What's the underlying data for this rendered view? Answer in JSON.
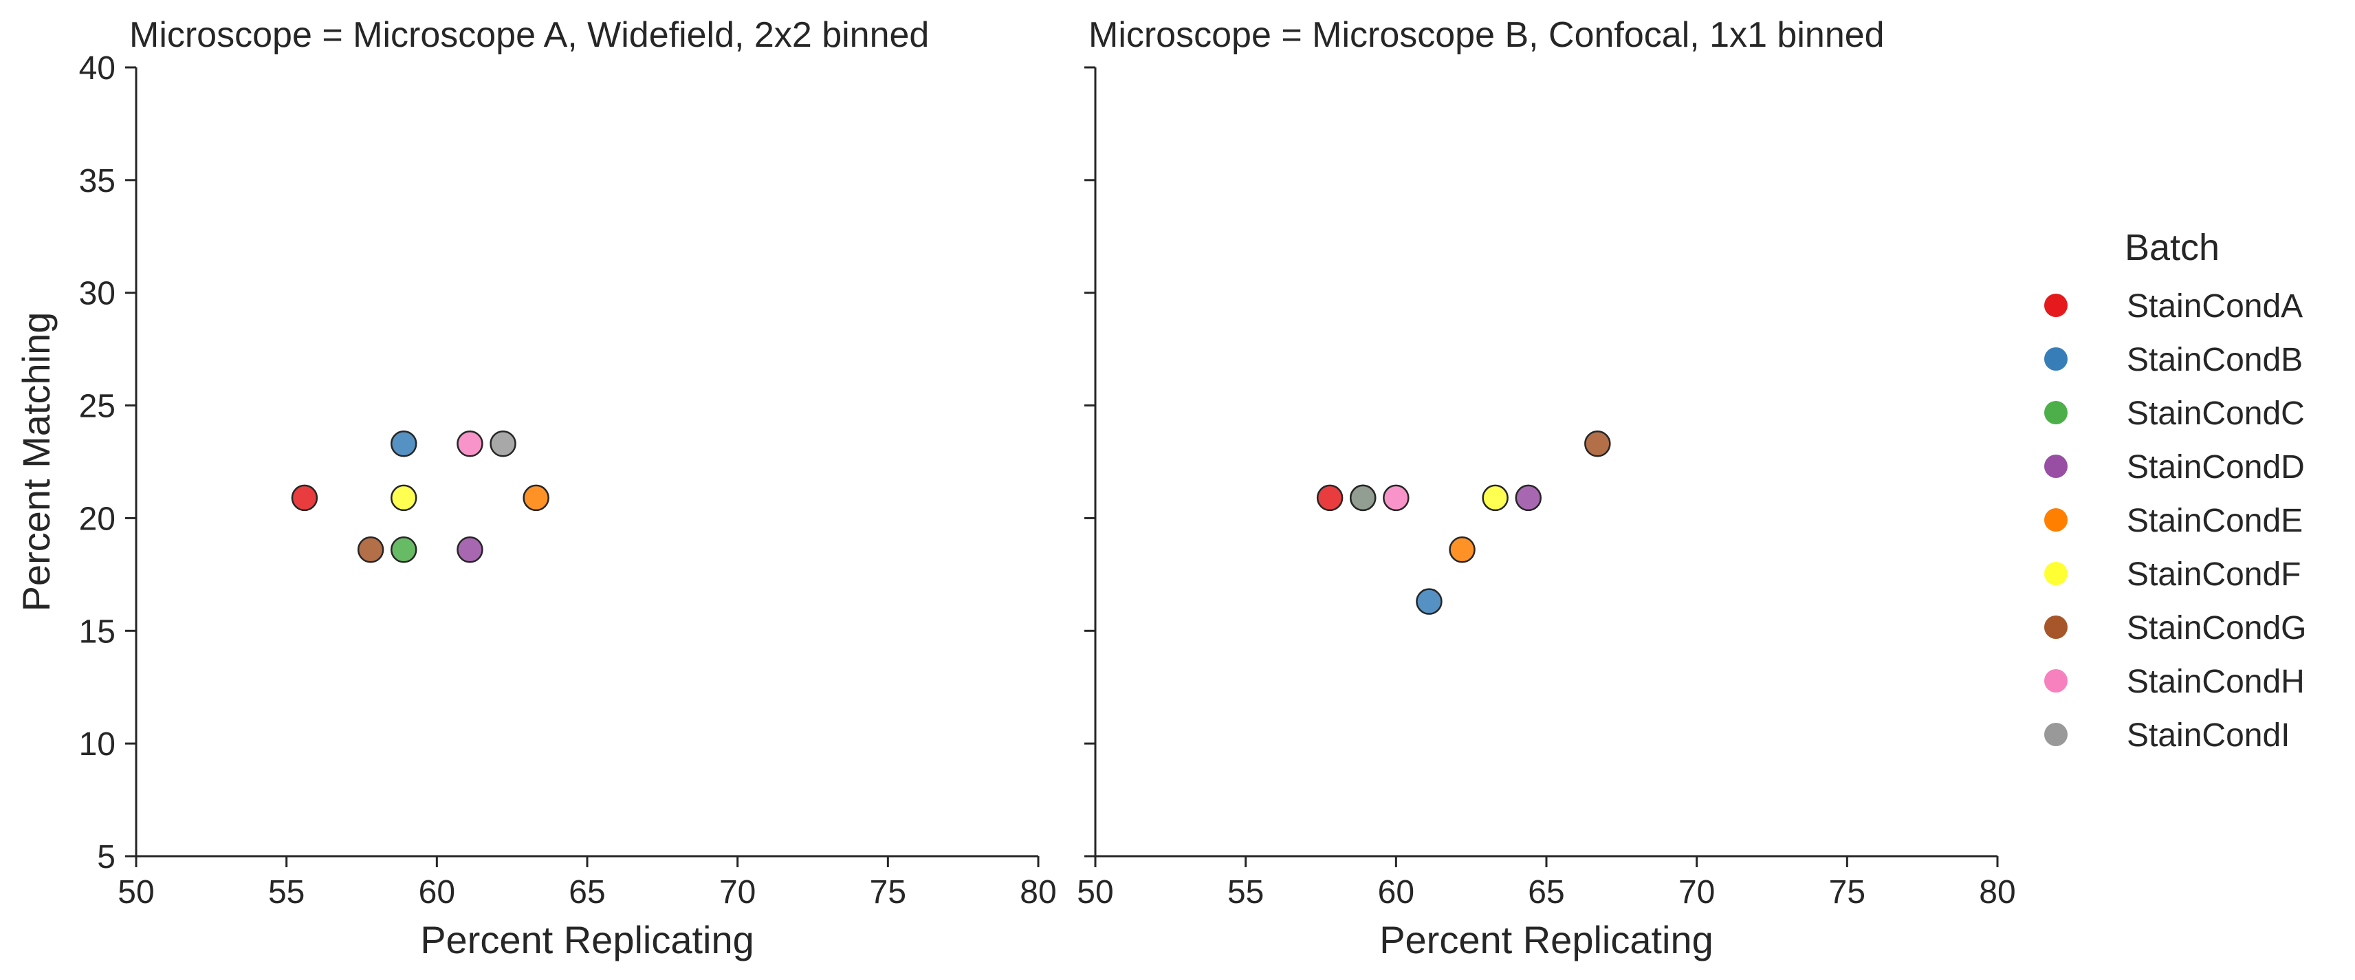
{
  "chart_data": [
    {
      "type": "scatter",
      "title": "Microscope = Microscope A, Widefield, 2x2 binned",
      "xlabel": "Percent Replicating",
      "ylabel": "Percent Matching",
      "xlim": [
        50,
        80
      ],
      "ylim": [
        5,
        40
      ],
      "xticks": [
        50,
        55,
        60,
        65,
        70,
        75,
        80
      ],
      "yticks": [
        5,
        10,
        15,
        20,
        25,
        30,
        35,
        40
      ],
      "grid": false,
      "series": [
        {
          "name": "StainCondA",
          "x": [
            55.6
          ],
          "y": [
            20.9
          ]
        },
        {
          "name": "StainCondB",
          "x": [
            58.9
          ],
          "y": [
            23.3
          ]
        },
        {
          "name": "StainCondC",
          "x": [
            58.9
          ],
          "y": [
            18.6
          ]
        },
        {
          "name": "StainCondD",
          "x": [
            61.1
          ],
          "y": [
            18.6
          ]
        },
        {
          "name": "StainCondE",
          "x": [
            63.3
          ],
          "y": [
            20.9
          ]
        },
        {
          "name": "StainCondF",
          "x": [
            58.9
          ],
          "y": [
            20.9
          ]
        },
        {
          "name": "StainCondG",
          "x": [
            57.8
          ],
          "y": [
            18.6
          ]
        },
        {
          "name": "StainCondH",
          "x": [
            61.1
          ],
          "y": [
            23.3
          ]
        },
        {
          "name": "StainCondI",
          "x": [
            62.2
          ],
          "y": [
            23.3
          ]
        }
      ]
    },
    {
      "type": "scatter",
      "title": "Microscope = Microscope B, Confocal, 1x1 binned",
      "xlabel": "Percent Replicating",
      "ylabel": "",
      "xlim": [
        50,
        80
      ],
      "ylim": [
        5,
        40
      ],
      "xticks": [
        50,
        55,
        60,
        65,
        70,
        75,
        80
      ],
      "yticks": [
        5,
        10,
        15,
        20,
        25,
        30,
        35,
        40
      ],
      "grid": false,
      "series": [
        {
          "name": "StainCondA",
          "x": [
            57.8
          ],
          "y": [
            20.9
          ]
        },
        {
          "name": "StainCondB",
          "x": [
            61.1
          ],
          "y": [
            16.3
          ]
        },
        {
          "name": "StainCondC",
          "x": [
            58.9
          ],
          "y": [
            20.9
          ]
        },
        {
          "name": "StainCondD",
          "x": [
            64.4
          ],
          "y": [
            20.9
          ]
        },
        {
          "name": "StainCondE",
          "x": [
            62.2
          ],
          "y": [
            18.6
          ]
        },
        {
          "name": "StainCondF",
          "x": [
            63.3
          ],
          "y": [
            20.9
          ]
        },
        {
          "name": "StainCondG",
          "x": [
            66.7
          ],
          "y": [
            23.3
          ]
        },
        {
          "name": "StainCondH",
          "x": [
            60.0
          ],
          "y": [
            20.9
          ]
        },
        {
          "name": "StainCondI",
          "x": [
            58.9
          ],
          "y": [
            20.9
          ]
        }
      ]
    }
  ],
  "legend": {
    "title": "Batch",
    "placement": "right",
    "entries": [
      {
        "label": "StainCondA",
        "color": "#e41a1c"
      },
      {
        "label": "StainCondB",
        "color": "#377eb8"
      },
      {
        "label": "StainCondC",
        "color": "#4daf4a"
      },
      {
        "label": "StainCondD",
        "color": "#984ea3"
      },
      {
        "label": "StainCondE",
        "color": "#ff7f00"
      },
      {
        "label": "StainCondF",
        "color": "#ffff33"
      },
      {
        "label": "StainCondG",
        "color": "#a65628"
      },
      {
        "label": "StainCondH",
        "color": "#f781bf"
      },
      {
        "label": "StainCondI",
        "color": "#999999"
      }
    ]
  }
}
